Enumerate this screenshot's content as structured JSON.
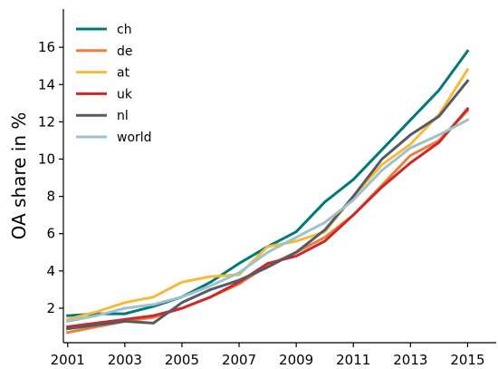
{
  "chart_data": {
    "type": "line",
    "title": "",
    "xlabel": "",
    "ylabel": "OA share in %",
    "xlim": [
      2000.85,
      2016.0
    ],
    "ylim": [
      0.15,
      18.05
    ],
    "xticks": [
      2001,
      2003,
      2005,
      2007,
      2009,
      2011,
      2013,
      2015
    ],
    "xtick_labels": [
      "2001",
      "2003",
      "2005",
      "2007",
      "2009",
      "2011",
      "2013",
      "2015"
    ],
    "yticks": [
      2,
      4,
      6,
      8,
      10,
      12,
      14,
      16
    ],
    "ytick_labels": [
      "2",
      "4",
      "6",
      "8",
      "10",
      "12",
      "14",
      "16"
    ],
    "grid": false,
    "legend_position": "top-left",
    "x": [
      2001,
      2002,
      2003,
      2004,
      2005,
      2006,
      2007,
      2008,
      2009,
      2010,
      2011,
      2012,
      2013,
      2014,
      2015
    ],
    "series": [
      {
        "name": "ch",
        "color": "#007a78",
        "values": [
          1.6,
          1.7,
          1.7,
          2.1,
          2.6,
          3.4,
          4.4,
          5.3,
          6.1,
          7.7,
          8.9,
          10.5,
          12.1,
          13.7,
          15.8
        ]
      },
      {
        "name": "de",
        "color": "#ef7d3c",
        "values": [
          0.7,
          1.0,
          1.3,
          1.5,
          2.0,
          2.6,
          3.3,
          4.3,
          5.0,
          5.8,
          7.0,
          8.6,
          10.2,
          11.0,
          12.6
        ]
      },
      {
        "name": "at",
        "color": "#f6b93b",
        "values": [
          1.4,
          1.8,
          2.3,
          2.6,
          3.4,
          3.7,
          3.8,
          5.3,
          5.6,
          6.1,
          8.0,
          9.7,
          10.8,
          12.4,
          14.8
        ]
      },
      {
        "name": "uk",
        "color": "#c92a2a",
        "values": [
          1.0,
          1.2,
          1.4,
          1.6,
          2.0,
          2.6,
          3.4,
          4.4,
          4.8,
          5.6,
          7.0,
          8.5,
          9.8,
          10.9,
          12.7
        ]
      },
      {
        "name": "nl",
        "color": "#555a66",
        "values": [
          0.9,
          1.1,
          1.3,
          1.2,
          2.3,
          3.0,
          3.5,
          4.2,
          5.0,
          6.2,
          8.0,
          10.0,
          11.3,
          12.3,
          14.2
        ]
      },
      {
        "name": "world",
        "color": "#9ec1cc",
        "values": [
          1.3,
          1.6,
          2.0,
          2.2,
          2.6,
          3.2,
          3.9,
          5.0,
          5.8,
          6.6,
          7.8,
          9.4,
          10.6,
          11.3,
          12.1
        ]
      }
    ]
  }
}
